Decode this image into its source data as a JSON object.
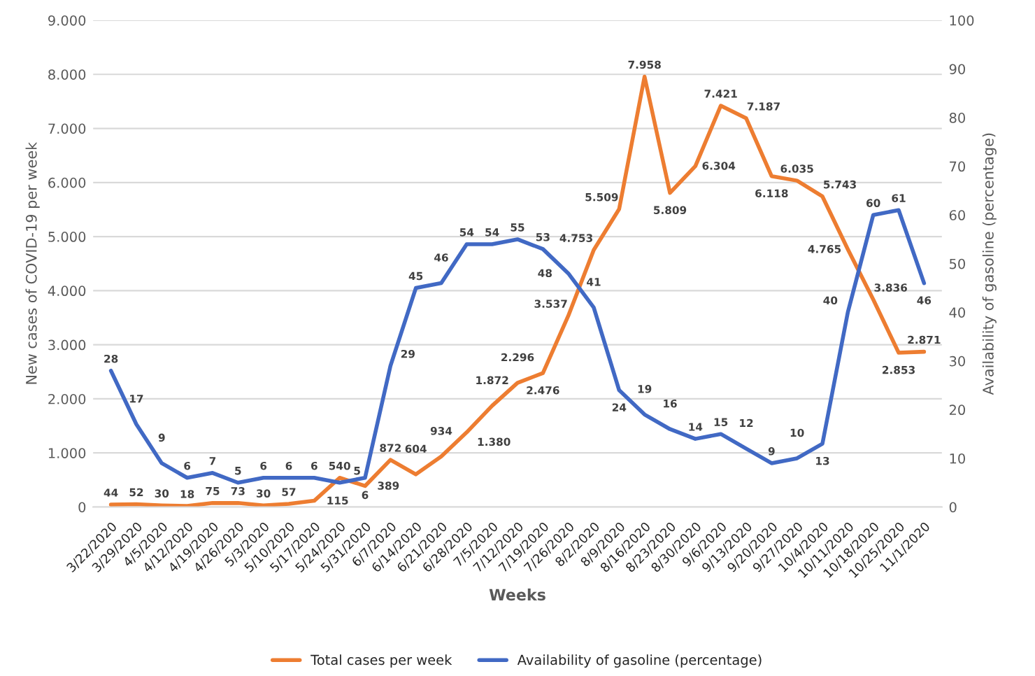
{
  "chart_data": {
    "type": "line",
    "xlabel": "Weeks",
    "ylabel": "New cases of COVID-19 per week",
    "y2label": "Availability of gasoline (percentage)",
    "categories": [
      "3/22/2020",
      "3/29/2020",
      "4/5/2020",
      "4/12/2020",
      "4/19/2020",
      "4/26/2020",
      "5/3/2020",
      "5/10/2020",
      "5/17/2020",
      "5/24/2020",
      "5/31/2020",
      "6/7/2020",
      "6/14/2020",
      "6/21/2020",
      "6/28/2020",
      "7/5/2020",
      "7/12/2020",
      "7/19/2020",
      "7/26/2020",
      "8/2/2020",
      "8/9/2020",
      "8/16/2020",
      "8/23/2020",
      "8/30/2020",
      "9/6/2020",
      "9/13/2020",
      "9/20/2020",
      "9/27/2020",
      "10/4/2020",
      "10/11/2020",
      "10/18/2020",
      "10/25/2020",
      "11/1/2020"
    ],
    "series": [
      {
        "name": "Total cases per week",
        "color": "#ed7d31",
        "values": [
          44,
          52,
          30,
          18,
          75,
          73,
          30,
          57,
          115,
          540,
          389,
          872,
          604,
          934,
          1380,
          1872,
          2296,
          2476,
          3537,
          4753,
          5509,
          7958,
          5809,
          6304,
          7421,
          7187,
          6118,
          6035,
          5743,
          4765,
          3836,
          2853,
          2871
        ],
        "value_labels": [
          "44",
          "52",
          "30",
          "18",
          "75",
          "73",
          "30",
          "57",
          "115",
          "540",
          "389",
          "872",
          "604",
          "934",
          "1.380",
          "1.872",
          "2.296",
          "2.476",
          "3.537",
          "4.753",
          "5.509",
          "7.958",
          "5.809",
          "6.304",
          "7.421",
          "7.187",
          "6.118",
          "6.035",
          "5.743",
          "4.765",
          "3.836",
          "2.853",
          "2.871"
        ]
      },
      {
        "name": "Availability of gasoline (percentage)",
        "color": "#4169c4",
        "axis": "y2",
        "values": [
          28,
          17,
          9,
          6,
          7,
          5,
          6,
          6,
          6,
          5,
          6,
          29,
          45,
          46,
          54,
          54,
          55,
          53,
          48,
          41,
          24,
          19,
          16,
          14,
          15,
          12,
          9,
          10,
          13,
          40,
          60,
          61,
          46
        ],
        "value_labels": [
          "28",
          "17",
          "9",
          "6",
          "7",
          "5",
          "6",
          "6",
          "6",
          "5",
          "6",
          "29",
          "45",
          "46",
          "54",
          "54",
          "55",
          "53",
          "48",
          "41",
          "24",
          "19",
          "16",
          "14",
          "15",
          "12",
          "9",
          "10",
          "13",
          "40",
          "60",
          "61",
          "46"
        ]
      }
    ],
    "ylim": [
      0,
      9000
    ],
    "yticks": [
      0,
      {
        "value": 1000,
        "label": "1.000"
      },
      {
        "value": 2000,
        "label": "2.000"
      },
      {
        "value": 3000,
        "label": "3.000"
      },
      {
        "value": 4000,
        "label": "4.000"
      },
      {
        "value": 5000,
        "label": "5.000"
      },
      {
        "value": 6000,
        "label": "6.000"
      },
      {
        "value": 7000,
        "label": "7.000"
      },
      {
        "value": 8000,
        "label": "8.000"
      },
      {
        "value": 9000,
        "label": "9.000"
      }
    ],
    "y2lim": [
      0,
      100
    ],
    "y2ticks": [
      0,
      10,
      20,
      30,
      40,
      50,
      60,
      70,
      80,
      90,
      100
    ],
    "grid": "y",
    "legend": "bottom",
    "marker": "none",
    "line_style": "solid"
  }
}
